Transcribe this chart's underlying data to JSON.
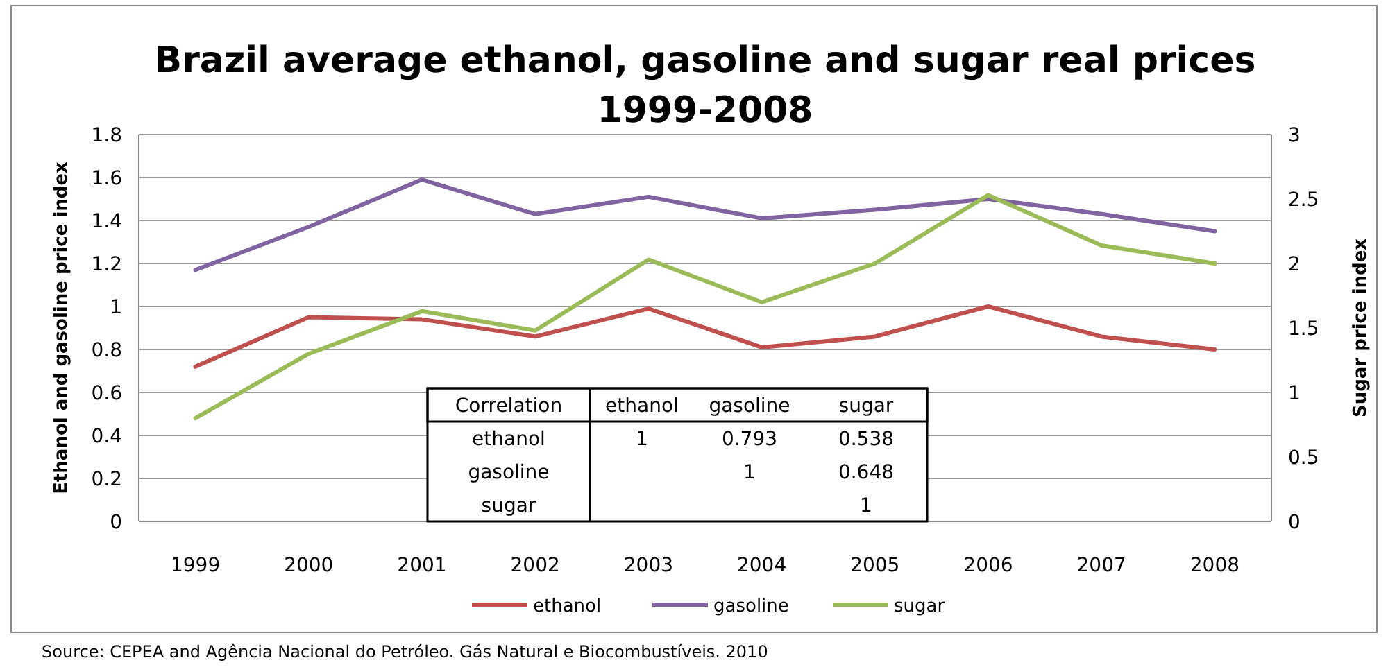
{
  "chart_data": {
    "type": "line",
    "title": "Brazil average ethanol, gasoline and sugar real prices 1999-2008",
    "ylabel": "Ethanol and gasoline price index",
    "y2label": "Sugar price index",
    "categories": [
      "1999",
      "2000",
      "2001",
      "2002",
      "2003",
      "2004",
      "2005",
      "2006",
      "2007",
      "2008"
    ],
    "series": [
      {
        "name": "ethanol",
        "color": "#c0504d",
        "values": [
          0.72,
          0.95,
          0.94,
          0.86,
          0.99,
          0.81,
          0.86,
          1.0,
          0.86,
          0.8
        ]
      },
      {
        "name": "gasoline",
        "color": "#8064a2",
        "values": [
          1.17,
          1.37,
          1.59,
          1.43,
          1.51,
          1.41,
          1.45,
          1.5,
          1.43,
          1.35
        ]
      },
      {
        "name": "sugar",
        "color": "#9bbb59",
        "axis": "y2",
        "values": [
          0.8,
          1.3,
          1.63,
          1.48,
          2.03,
          1.7,
          2.0,
          2.53,
          2.14,
          2.0
        ]
      }
    ],
    "ylim": [
      0,
      1.8
    ],
    "yticks": [
      0,
      {
        "value": 0.2,
        "label": "0.2"
      },
      {
        "value": 0.4,
        "label": "0.4"
      },
      {
        "value": 0.6,
        "label": "0.6"
      },
      {
        "value": 0.8,
        "label": "0.8"
      },
      1,
      {
        "value": 1.2,
        "label": "1.2"
      },
      {
        "value": 1.4,
        "label": "1.4"
      },
      {
        "value": 1.6,
        "label": "1.6"
      },
      {
        "value": 1.8,
        "label": "1.8"
      }
    ],
    "y2lim": [
      0,
      3
    ],
    "y2ticks": [
      0,
      0.5,
      1,
      1.5,
      2,
      2.5,
      3
    ],
    "grid": "y",
    "legend": "bottom",
    "marker": "none",
    "line_style": "solid",
    "annotations": [
      "Correlation\tethanol\tgasoline\tsugar",
      "ethanol\t1\t0.793\t0.538",
      "gasoline\t\t1\t0.648",
      "sugar\t\t\t1",
      "Source: CEPEA and Agência Nacional do Petróleo. Gás Natural e Biocombustíveis. 2010"
    ]
  }
}
